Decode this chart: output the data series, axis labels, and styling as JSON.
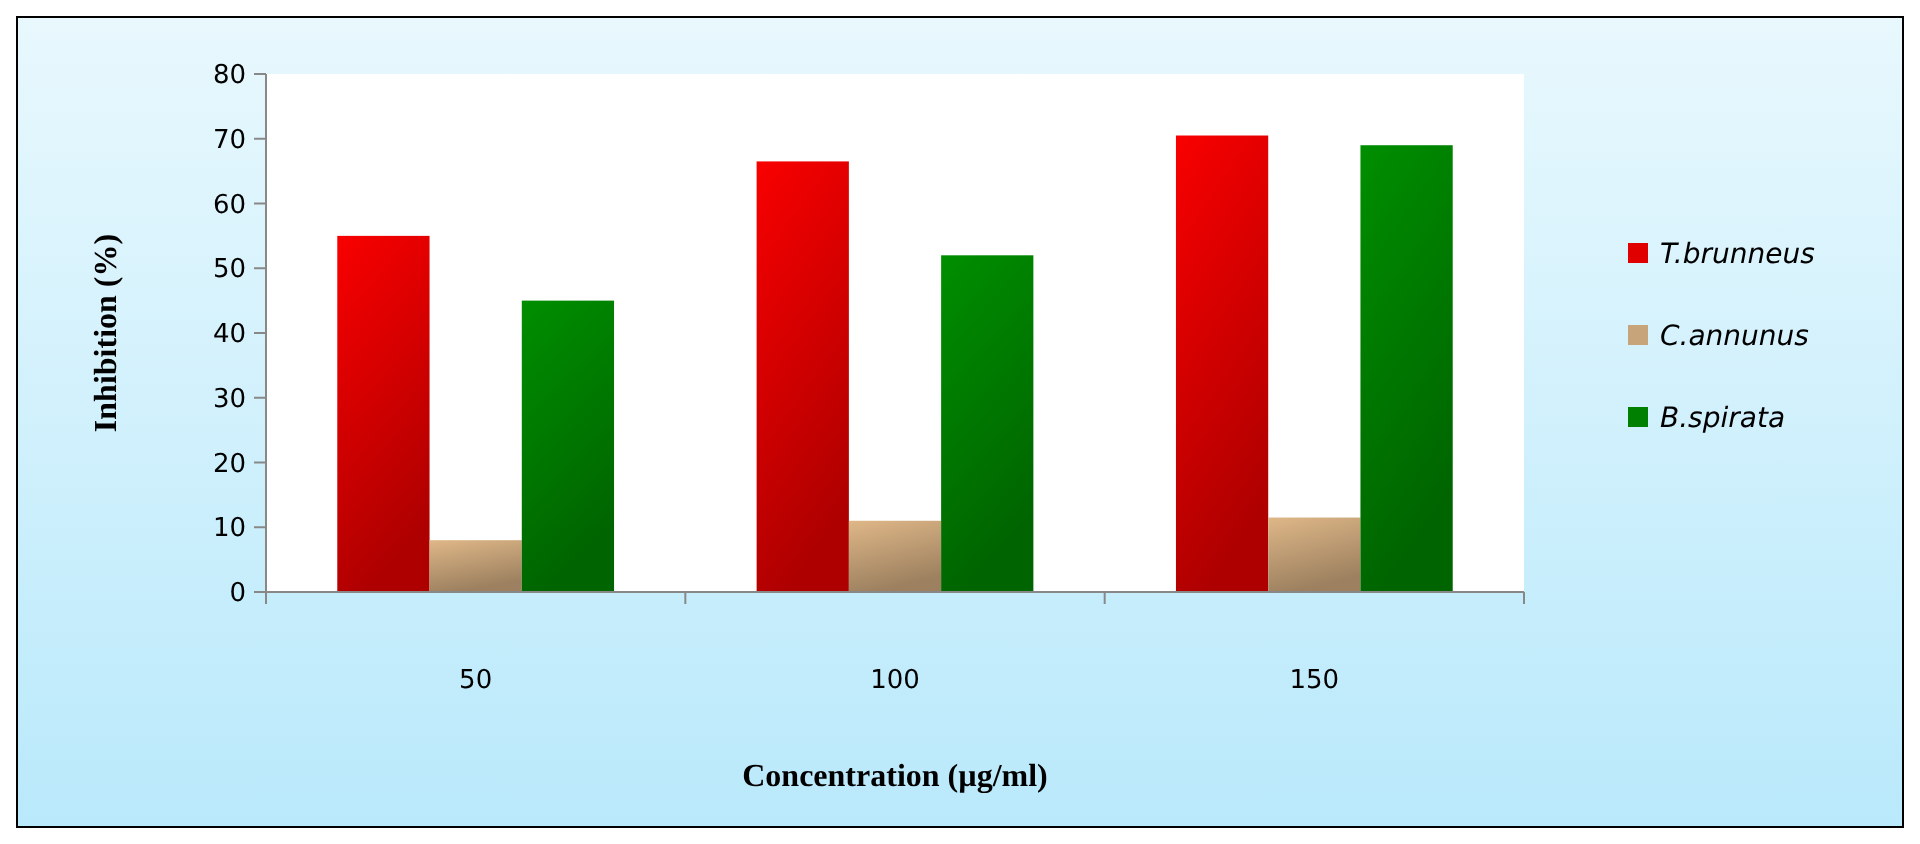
{
  "chart_data": {
    "type": "bar",
    "xlabel": "Concentration (µg/ml)",
    "ylabel": "Inhibition (%)",
    "categories": [
      "50",
      "100",
      "150"
    ],
    "series": [
      {
        "name": "T.brunneus",
        "color": "#e00000",
        "values": [
          55,
          66.5,
          70.5
        ]
      },
      {
        "name": "C.annunus",
        "color": "#c8a47a",
        "values": [
          8,
          11,
          11.5
        ]
      },
      {
        "name": "B.spirata",
        "color": "#008000",
        "values": [
          45,
          52,
          69
        ]
      }
    ],
    "ylim": [
      0,
      80
    ],
    "yticks": [
      0,
      10,
      20,
      30,
      40,
      50,
      60,
      70,
      80
    ],
    "grid": false,
    "legend": "right"
  }
}
